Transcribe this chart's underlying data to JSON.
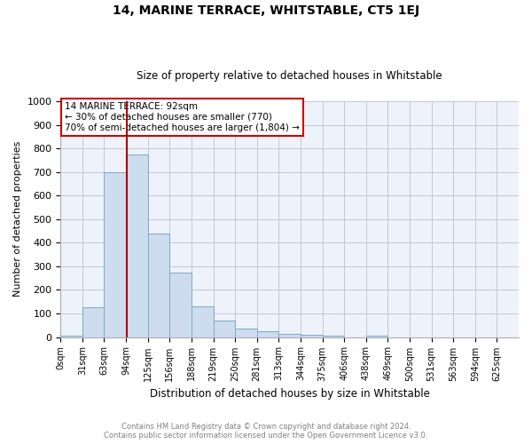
{
  "title": "14, MARINE TERRACE, WHITSTABLE, CT5 1EJ",
  "subtitle": "Size of property relative to detached houses in Whitstable",
  "xlabel": "Distribution of detached houses by size in Whitstable",
  "ylabel": "Number of detached properties",
  "footnote1": "Contains HM Land Registry data © Crown copyright and database right 2024.",
  "footnote2": "Contains public sector information licensed under the Open Government Licence v3.0.",
  "bar_labels": [
    "0sqm",
    "31sqm",
    "63sqm",
    "94sqm",
    "125sqm",
    "156sqm",
    "188sqm",
    "219sqm",
    "250sqm",
    "281sqm",
    "313sqm",
    "344sqm",
    "375sqm",
    "406sqm",
    "438sqm",
    "469sqm",
    "500sqm",
    "531sqm",
    "563sqm",
    "594sqm",
    "625sqm"
  ],
  "bar_values": [
    5,
    125,
    700,
    775,
    440,
    275,
    130,
    70,
    35,
    25,
    12,
    10,
    5,
    0,
    7,
    0,
    0,
    0,
    0,
    0,
    0
  ],
  "bar_color": "#cddcee",
  "bar_edge_color": "#7aaac8",
  "ylim": [
    0,
    1000
  ],
  "yticks": [
    0,
    100,
    200,
    300,
    400,
    500,
    600,
    700,
    800,
    900,
    1000
  ],
  "vline_x": 94,
  "property_label": "14 MARINE TERRACE: 92sqm",
  "stat_line1": "← 30% of detached houses are smaller (770)",
  "stat_line2": "70% of semi-detached houses are larger (1,804) →",
  "vline_color": "#aa0000",
  "annotation_box_color": "#cc0000",
  "bg_color": "#eef2fa",
  "grid_color": "#c0c8d8",
  "bin_width": 31,
  "n_bars": 21
}
